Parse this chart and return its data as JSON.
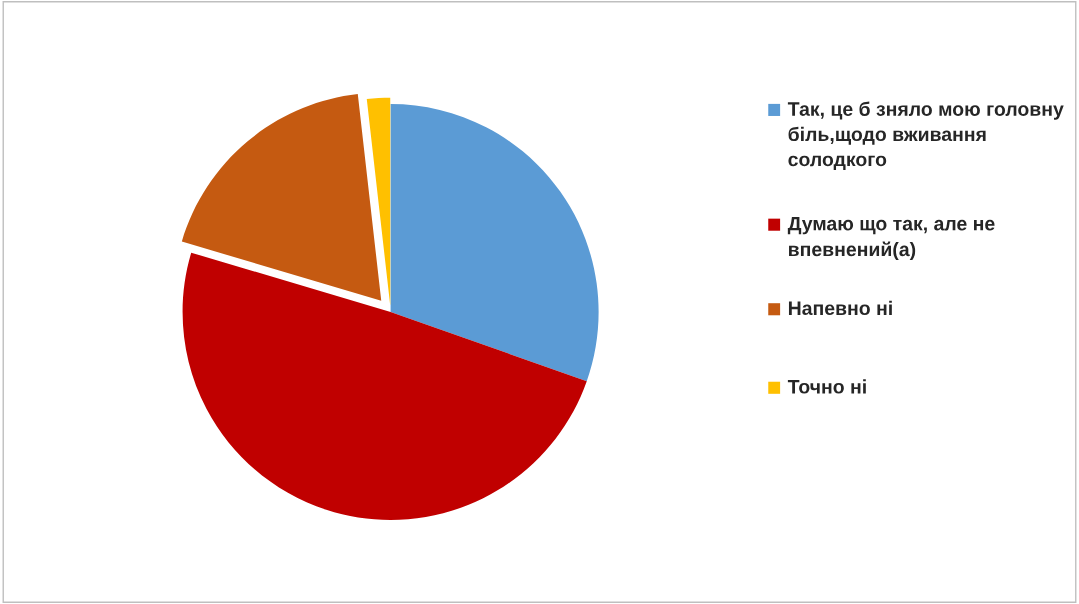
{
  "chart_data": {
    "type": "pie",
    "categories": [
      "Так, це б зняло мою головну біль,щодо вживання солодкого",
      "Думаю що так, але не впевнений(а)",
      "Напевно ні",
      "Точно ні"
    ],
    "values": [
      30.4,
      49.2,
      18.6,
      1.8
    ],
    "colors": [
      "#5b9bd5",
      "#c00000",
      "#c55a11",
      "#ffc000"
    ],
    "legend": "right"
  }
}
